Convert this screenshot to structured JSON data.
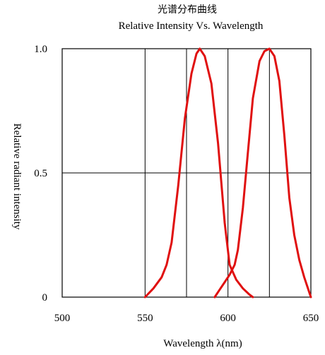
{
  "chart_data": {
    "type": "line",
    "title_cn": "光谱分布曲线",
    "title": "Relative Intensity Vs. Wavelength",
    "xlabel": "Wavelength λ(nm)",
    "ylabel": "Relative radiant intensity",
    "xlim": [
      500,
      650
    ],
    "ylim": [
      0,
      1
    ],
    "x_ticks": [
      "500",
      "550",
      "600",
      "650"
    ],
    "y_ticks": [
      "0",
      "0.5",
      "1.0"
    ],
    "x_gridlines": [
      550,
      575,
      600,
      625
    ],
    "y_gridlines": [
      0.5
    ],
    "grid": true,
    "line_color": "#e01010",
    "series": [
      {
        "x": [
          550,
          555,
          560,
          563,
          566,
          570,
          574,
          578,
          581,
          583,
          586,
          590,
          594,
          598,
          601,
          605,
          609,
          613,
          615
        ],
        "y": [
          0.0,
          0.035,
          0.08,
          0.13,
          0.22,
          0.45,
          0.72,
          0.9,
          0.98,
          1.0,
          0.97,
          0.86,
          0.62,
          0.3,
          0.13,
          0.07,
          0.035,
          0.01,
          0.0
        ]
      },
      {
        "x": [
          592,
          595,
          598,
          601,
          604,
          606,
          609,
          612,
          615,
          619,
          622,
          625,
          628,
          631,
          634,
          637,
          640,
          643,
          646,
          650
        ],
        "y": [
          0.0,
          0.03,
          0.06,
          0.09,
          0.13,
          0.19,
          0.36,
          0.58,
          0.8,
          0.95,
          0.99,
          1.0,
          0.97,
          0.87,
          0.65,
          0.4,
          0.25,
          0.15,
          0.08,
          0.0
        ]
      }
    ]
  }
}
